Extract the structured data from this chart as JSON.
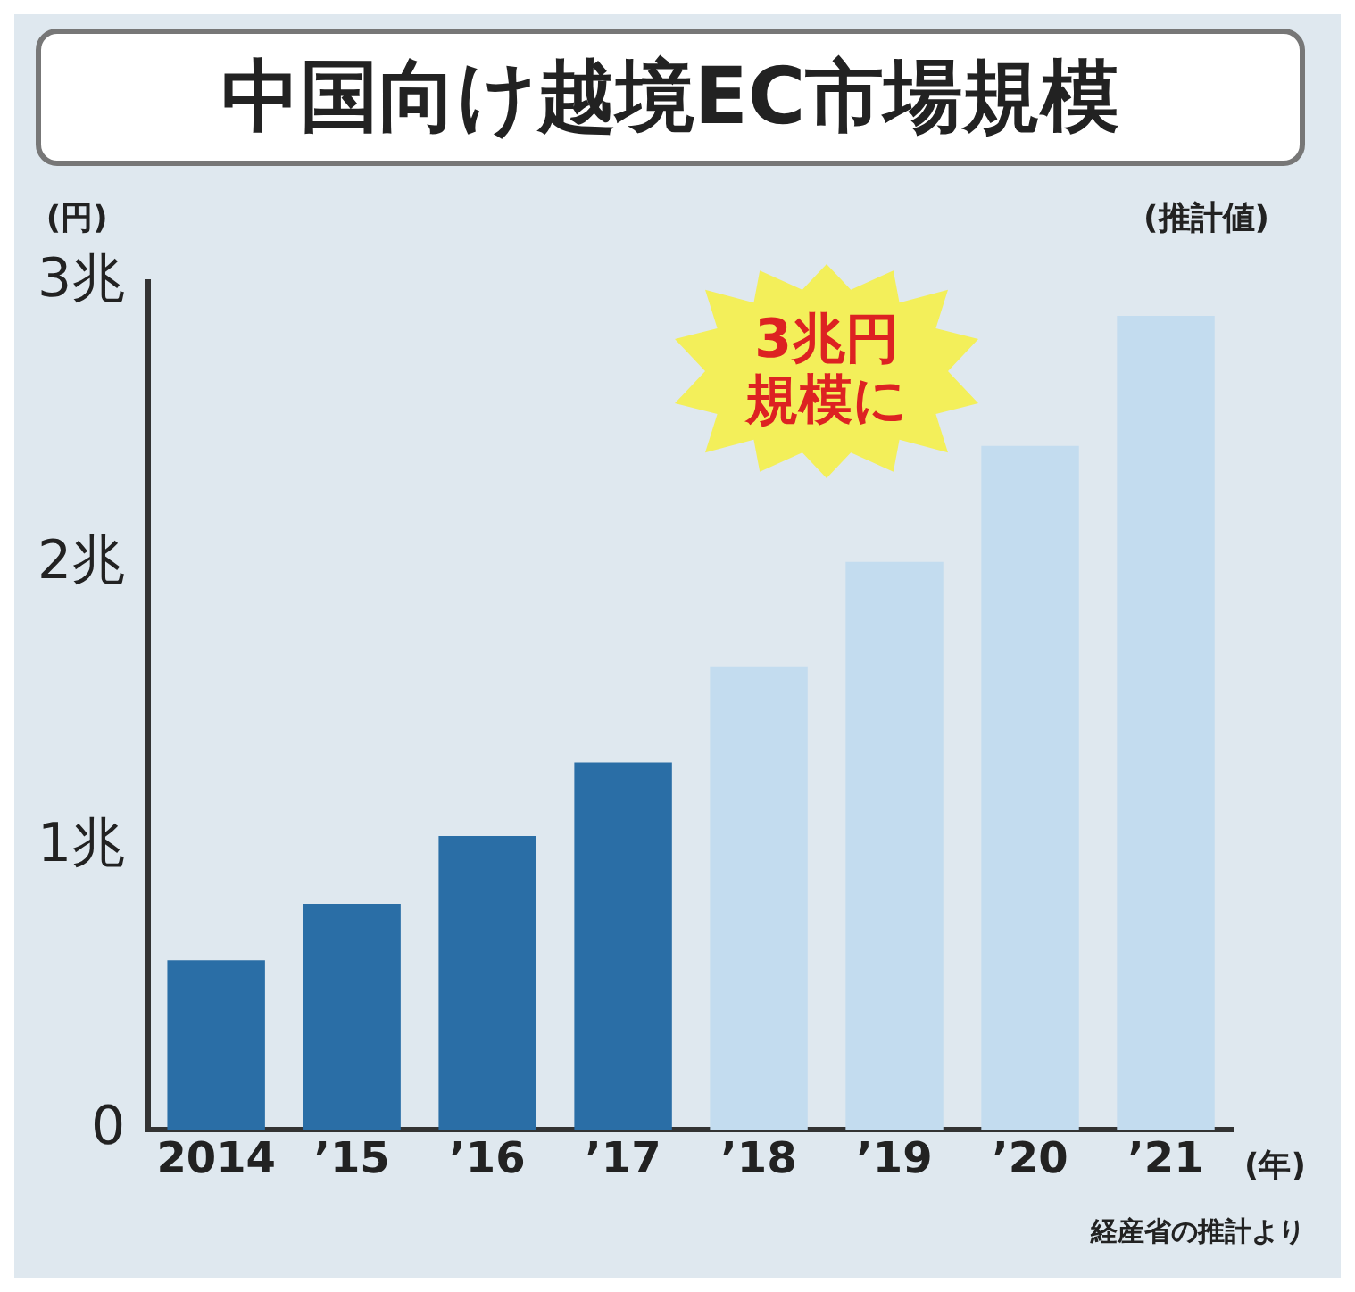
{
  "chart_data": {
    "type": "bar",
    "title": "中国向け越境EC市場規模",
    "ylabel": "(円)",
    "xlabel": "(年)",
    "categories": [
      "2014",
      "’15",
      "’16",
      "’17",
      "’18",
      "’19",
      "’20",
      "’21"
    ],
    "values": [
      0.6,
      0.8,
      1.04,
      1.3,
      1.64,
      2.01,
      2.42,
      2.88
    ],
    "colors": [
      "#2a6ea6",
      "#2a6ea6",
      "#2a6ea6",
      "#2a6ea6",
      "#c3dcef",
      "#c3dcef",
      "#c3dcef",
      "#c3dcef"
    ],
    "ylim": [
      0,
      3
    ],
    "yticks": [
      {
        "value": 0,
        "label": "0"
      },
      {
        "value": 1,
        "label": "1兆"
      },
      {
        "value": 2,
        "label": "2兆"
      },
      {
        "value": 3,
        "label": "3兆"
      }
    ],
    "annotations": [
      "(推計値)",
      "3兆円規模に",
      "経産省の推計より"
    ],
    "grid": false,
    "legend": false
  }
}
